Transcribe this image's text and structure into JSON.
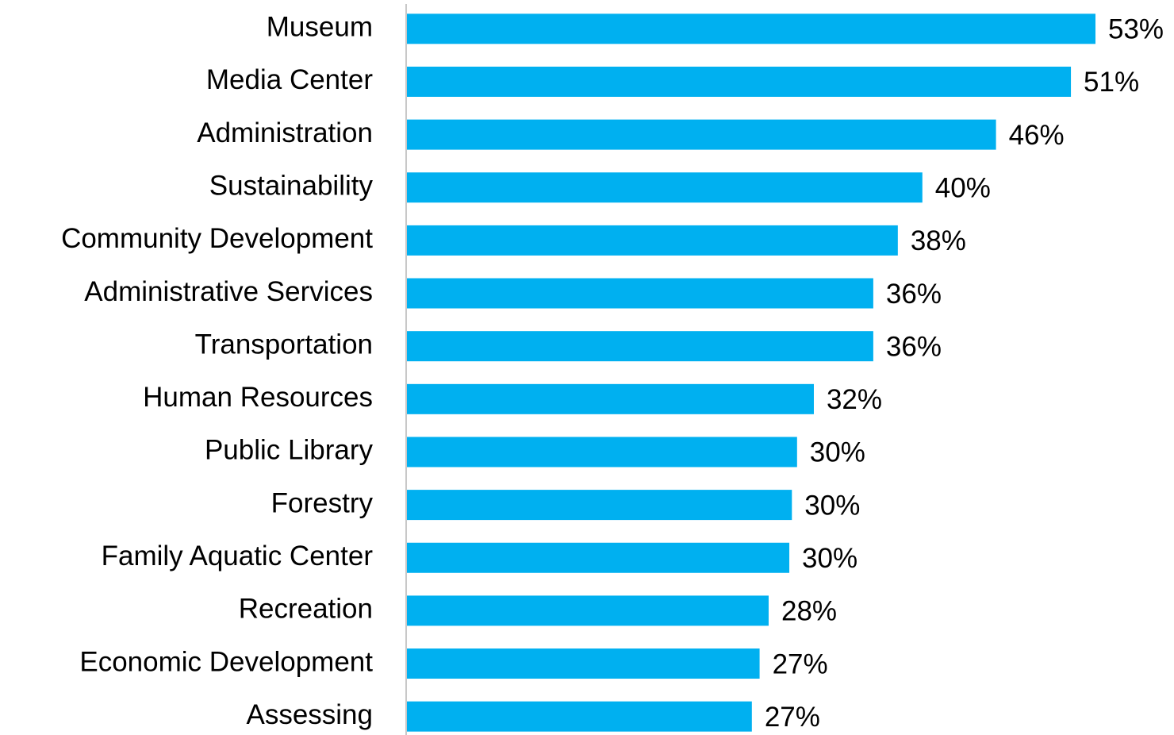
{
  "chart_data": {
    "type": "bar",
    "orientation": "horizontal",
    "categories": [
      "Museum",
      "Media Center",
      "Administration",
      "Sustainability",
      "Community Development",
      "Administrative Services",
      "Transportation",
      "Human Resources",
      "Public Library",
      "Forestry",
      "Family Aquatic Center",
      "Recreation",
      "Economic Development",
      "Assessing"
    ],
    "values": [
      53.3,
      51.4,
      45.6,
      39.9,
      38.0,
      36.1,
      36.1,
      31.5,
      30.2,
      29.8,
      29.6,
      28.0,
      27.3,
      26.7
    ],
    "value_labels": [
      "53%",
      "51%",
      "46%",
      "40%",
      "38%",
      "36%",
      "36%",
      "32%",
      "30%",
      "30%",
      "30%",
      "28%",
      "27%",
      "27%"
    ],
    "color": "#00b0f0"
  }
}
